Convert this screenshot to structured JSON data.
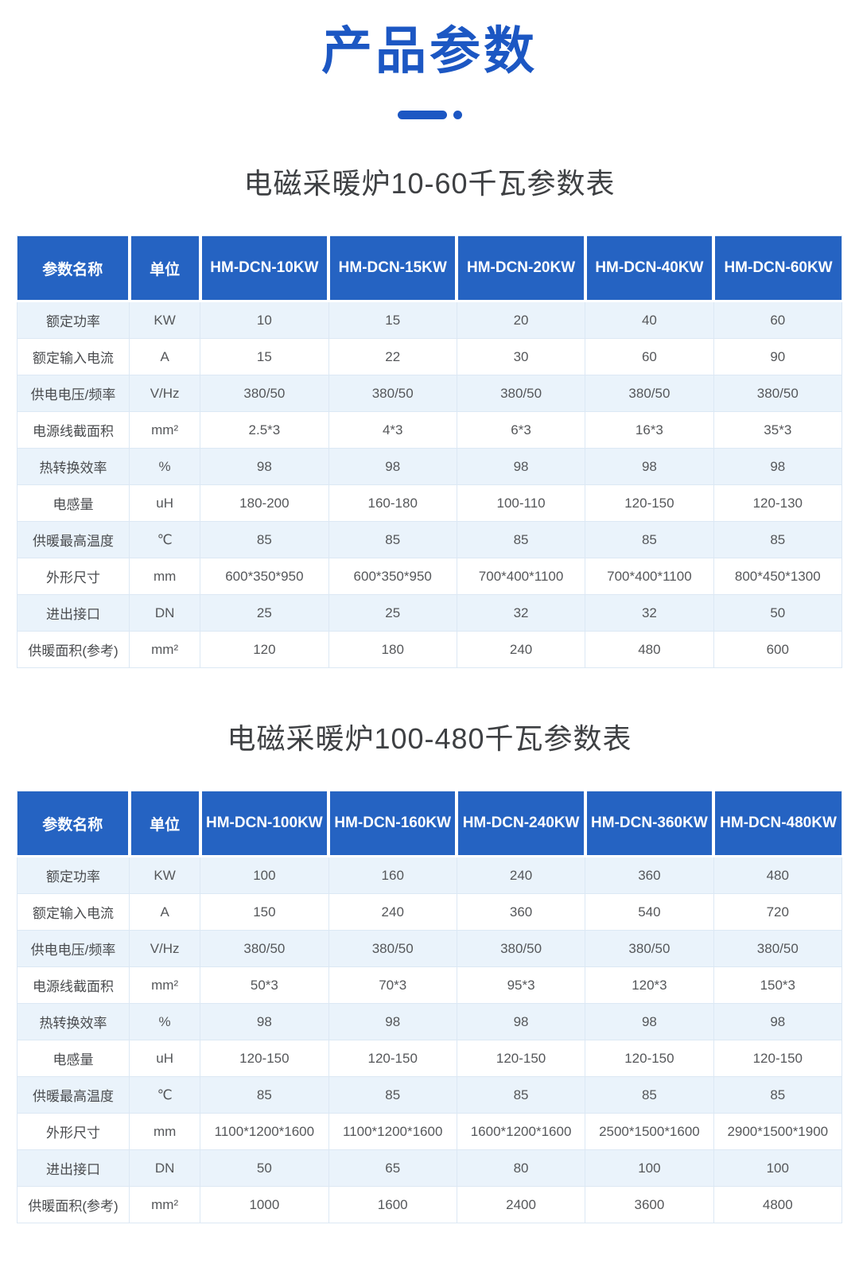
{
  "page": {
    "title": "产品参数",
    "accent_color": "#1c57c3",
    "header_bg_color": "#2563c2",
    "alt_row_color": "#eaf3fb",
    "border_color": "#dce8f4"
  },
  "tables": [
    {
      "caption": "电磁采暖炉10-60千瓦参数表",
      "columns": [
        "参数名称",
        "单位",
        "HM-DCN-10KW",
        "HM-DCN-15KW",
        "HM-DCN-20KW",
        "HM-DCN-40KW",
        "HM-DCN-60KW"
      ],
      "rows": [
        [
          "额定功率",
          "KW",
          "10",
          "15",
          "20",
          "40",
          "60"
        ],
        [
          "额定输入电流",
          "A",
          "15",
          "22",
          "30",
          "60",
          "90"
        ],
        [
          "供电电压/频率",
          "V/Hz",
          "380/50",
          "380/50",
          "380/50",
          "380/50",
          "380/50"
        ],
        [
          "电源线截面积",
          "mm²",
          "2.5*3",
          "4*3",
          "6*3",
          "16*3",
          "35*3"
        ],
        [
          "热转换效率",
          "%",
          "98",
          "98",
          "98",
          "98",
          "98"
        ],
        [
          "电感量",
          "uH",
          "180-200",
          "160-180",
          "100-110",
          "120-150",
          "120-130"
        ],
        [
          "供暖最高温度",
          "℃",
          "85",
          "85",
          "85",
          "85",
          "85"
        ],
        [
          "外形尺寸",
          "mm",
          "600*350*950",
          "600*350*950",
          "700*400*1100",
          "700*400*1100",
          "800*450*1300"
        ],
        [
          "进出接口",
          "DN",
          "25",
          "25",
          "32",
          "32",
          "50"
        ],
        [
          "供暖面积(参考)",
          "mm²",
          "120",
          "180",
          "240",
          "480",
          "600"
        ]
      ]
    },
    {
      "caption": "电磁采暖炉100-480千瓦参数表",
      "columns": [
        "参数名称",
        "单位",
        "HM-DCN-100KW",
        "HM-DCN-160KW",
        "HM-DCN-240KW",
        "HM-DCN-360KW",
        "HM-DCN-480KW"
      ],
      "rows": [
        [
          "额定功率",
          "KW",
          "100",
          "160",
          "240",
          "360",
          "480"
        ],
        [
          "额定输入电流",
          "A",
          "150",
          "240",
          "360",
          "540",
          "720"
        ],
        [
          "供电电压/频率",
          "V/Hz",
          "380/50",
          "380/50",
          "380/50",
          "380/50",
          "380/50"
        ],
        [
          "电源线截面积",
          "mm²",
          "50*3",
          "70*3",
          "95*3",
          "120*3",
          "150*3"
        ],
        [
          "热转换效率",
          "%",
          "98",
          "98",
          "98",
          "98",
          "98"
        ],
        [
          "电感量",
          "uH",
          "120-150",
          "120-150",
          "120-150",
          "120-150",
          "120-150"
        ],
        [
          "供暖最高温度",
          "℃",
          "85",
          "85",
          "85",
          "85",
          "85"
        ],
        [
          "外形尺寸",
          "mm",
          "1100*1200*1600",
          "1100*1200*1600",
          "1600*1200*1600",
          "2500*1500*1600",
          "2900*1500*1900"
        ],
        [
          "进出接口",
          "DN",
          "50",
          "65",
          "80",
          "100",
          "100"
        ],
        [
          "供暖面积(参考)",
          "mm²",
          "1000",
          "1600",
          "2400",
          "3600",
          "4800"
        ]
      ]
    }
  ]
}
